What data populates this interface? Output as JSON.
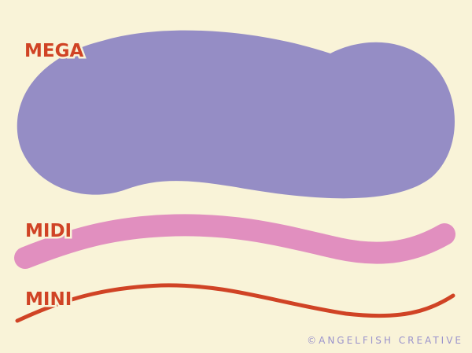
{
  "labels": {
    "mega": "MEGA",
    "midi": "MIDI",
    "mini": "MINI"
  },
  "credit": "©ANGELFISH CREATIVE",
  "colors": {
    "background": "#f9f3d8",
    "mega_shape": "#958dc5",
    "midi_stroke": "#e18fbf",
    "mini_stroke": "#d04325",
    "label_text": "#d04325",
    "credit_text": "#9a93cc"
  }
}
